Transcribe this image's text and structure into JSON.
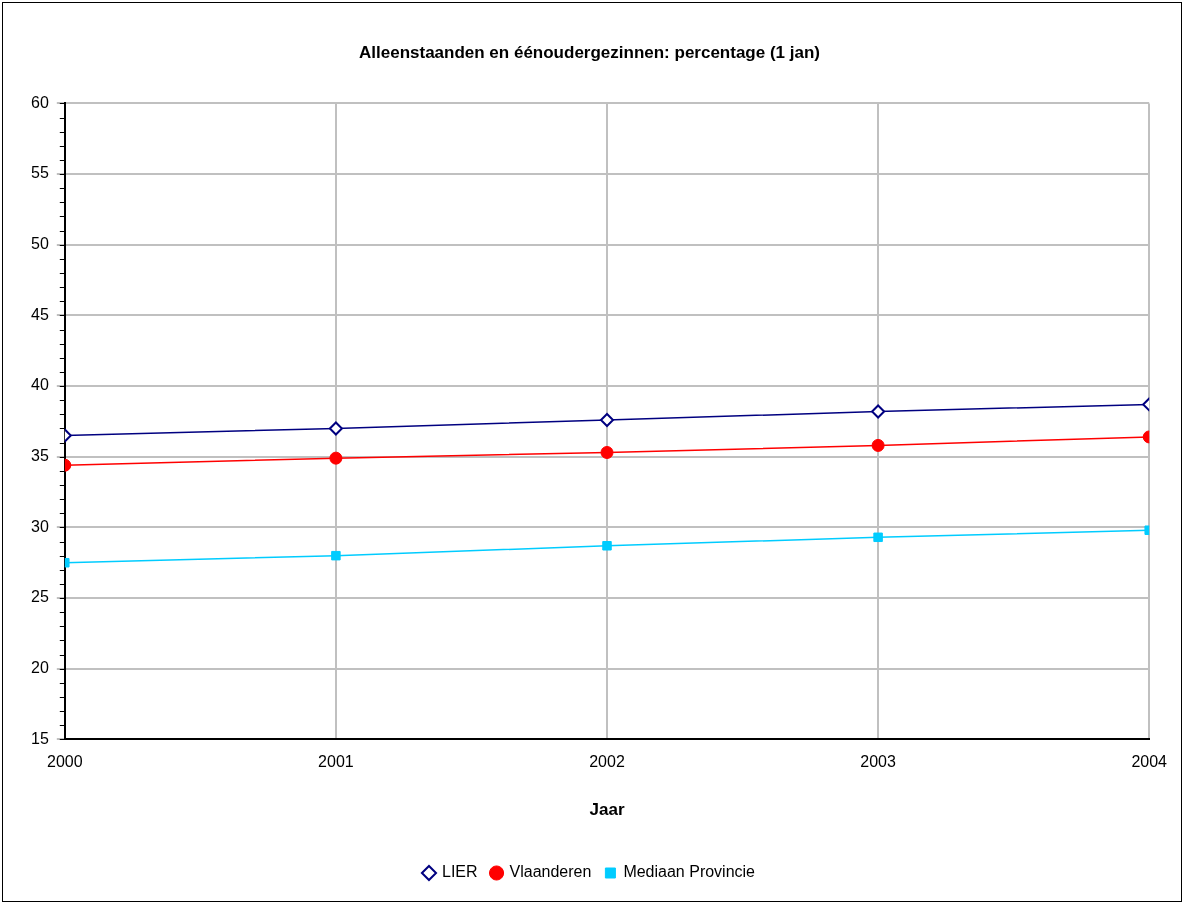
{
  "chart_data": {
    "type": "line",
    "title": "Alleenstaanden en éénoudergezinnen: percentage (1 jan)",
    "xlabel": "Jaar",
    "x": [
      2000,
      2001,
      2002,
      2003,
      2004
    ],
    "xlim": [
      2000,
      2004
    ],
    "xticks": [
      2000,
      2001,
      2002,
      2003,
      2004
    ],
    "ylim": [
      15,
      60
    ],
    "yticks": [
      15,
      20,
      25,
      30,
      35,
      40,
      45,
      50,
      55,
      60
    ],
    "grid": true,
    "legend": "bottom",
    "series": [
      {
        "name": "LIER",
        "color": "#000080",
        "marker": "diamond",
        "values": [
          36.5,
          37.0,
          37.6,
          38.2,
          38.7
        ]
      },
      {
        "name": "Vlaanderen",
        "color": "#ff0000",
        "marker": "circle",
        "values": [
          34.4,
          34.9,
          35.3,
          35.8,
          36.4
        ]
      },
      {
        "name": "Mediaan Provincie",
        "color": "#00ccff",
        "marker": "square",
        "values": [
          27.5,
          28.0,
          28.7,
          29.3,
          29.8
        ]
      }
    ]
  }
}
